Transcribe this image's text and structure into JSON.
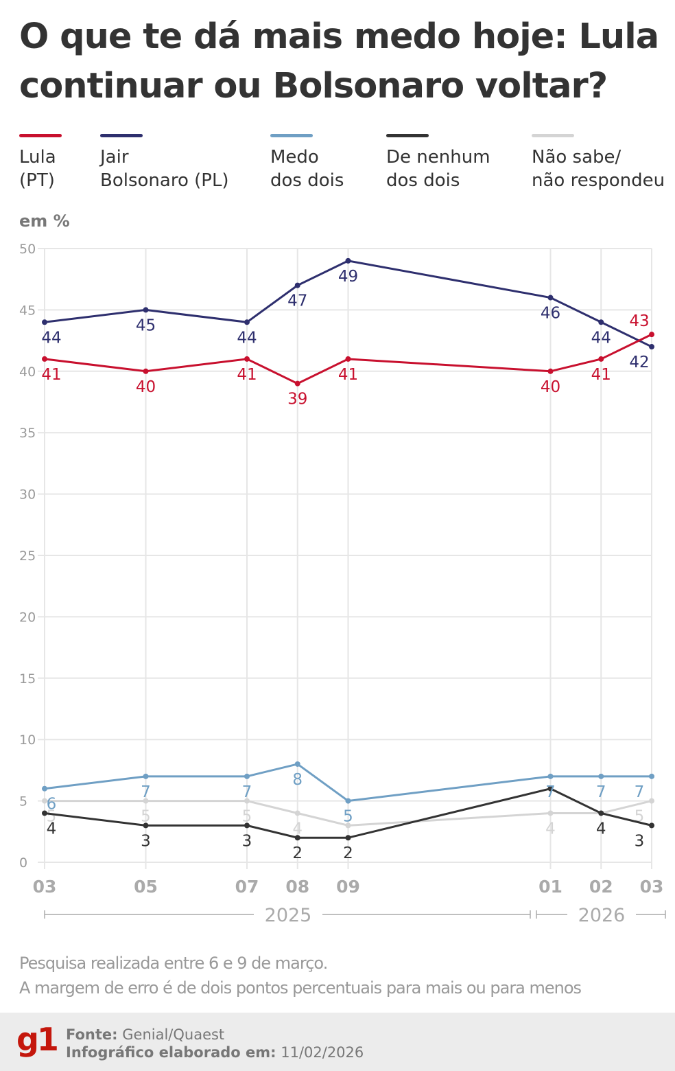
{
  "chart_data": {
    "type": "line",
    "title": "O que te dá mais medo hoje: Lula continuar ou Bolsonaro voltar?",
    "y_label": "em %",
    "x": [
      0,
      2,
      4,
      5,
      6,
      10,
      11,
      12
    ],
    "xlim": [
      0,
      12
    ],
    "xticks": [
      {
        "value": 0,
        "label": "03"
      },
      {
        "value": 2,
        "label": "05"
      },
      {
        "value": 4,
        "label": "07"
      },
      {
        "value": 5,
        "label": "08"
      },
      {
        "value": 6,
        "label": "09"
      },
      {
        "value": 10,
        "label": "01"
      },
      {
        "value": 11,
        "label": "02"
      },
      {
        "value": 12,
        "label": "03"
      }
    ],
    "year_labels": [
      "2025",
      "2026"
    ],
    "ylim": [
      0,
      50
    ],
    "yticks": [
      0,
      5,
      10,
      15,
      20,
      25,
      30,
      35,
      40,
      45,
      50
    ],
    "grid": true,
    "series": [
      {
        "name": "Lula\n(PT)",
        "color": "#c8102e",
        "values": [
          41,
          40,
          41,
          39,
          41,
          40,
          41,
          43
        ]
      },
      {
        "name": "Jair\nBolsonaro (PL)",
        "color": "#2e2f6e",
        "values": [
          44,
          45,
          44,
          47,
          49,
          46,
          44,
          42
        ]
      },
      {
        "name": "Medo\ndos dois",
        "color": "#6f9fc4",
        "values": [
          6,
          7,
          7,
          8,
          5,
          7,
          7,
          7
        ]
      },
      {
        "name": "De nenhum\ndos dois",
        "color": "#333333",
        "values": [
          4,
          3,
          3,
          2,
          2,
          6,
          4,
          3
        ],
        "value_labels": [
          "4",
          "3",
          "3",
          "2",
          "2",
          null,
          "4",
          "3"
        ]
      },
      {
        "name": "Não sabe/\nnão respondeu",
        "color": "#d4d4d4",
        "values": [
          5,
          5,
          5,
          4,
          3,
          4,
          4,
          5
        ],
        "value_labels": [
          "5",
          "5",
          "5",
          "4",
          null,
          "4",
          null,
          "5"
        ]
      }
    ],
    "notes": [
      "Pesquisa realizada entre 6 e 9 de março.",
      "A margem de erro é de dois pontos percentuais para mais ou para menos"
    ]
  },
  "footer": {
    "logo": "g1",
    "source_label": "Fonte:",
    "source": "Genial/Quaest",
    "date_label": "Infográfico elaborado em:",
    "date": "11/02/2026"
  }
}
